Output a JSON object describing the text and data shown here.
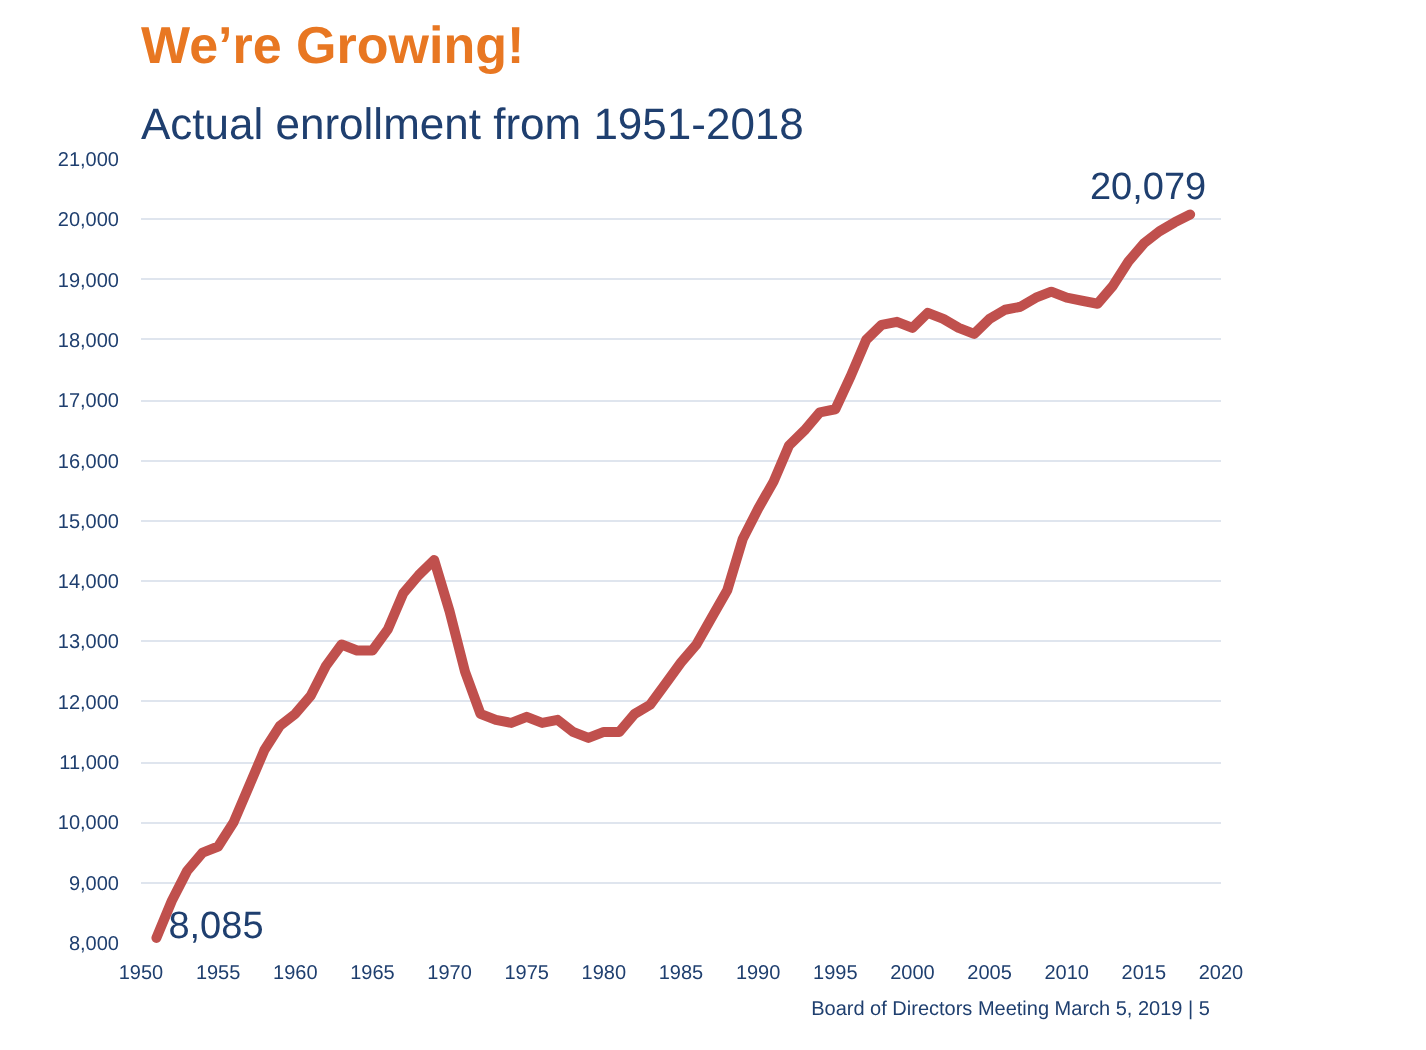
{
  "chart_data": {
    "type": "line",
    "title": "We’re Growing!",
    "subtitle": "Actual enrollment from 1951-2018",
    "x": [
      1951,
      1952,
      1953,
      1954,
      1955,
      1956,
      1957,
      1958,
      1959,
      1960,
      1961,
      1962,
      1963,
      1964,
      1965,
      1966,
      1967,
      1968,
      1969,
      1970,
      1971,
      1972,
      1973,
      1974,
      1975,
      1976,
      1977,
      1978,
      1979,
      1980,
      1981,
      1982,
      1983,
      1984,
      1985,
      1986,
      1987,
      1988,
      1989,
      1990,
      1991,
      1992,
      1993,
      1994,
      1995,
      1996,
      1997,
      1998,
      1999,
      2000,
      2001,
      2002,
      2003,
      2004,
      2005,
      2006,
      2007,
      2008,
      2009,
      2010,
      2011,
      2012,
      2013,
      2014,
      2015,
      2016,
      2017,
      2018
    ],
    "series": [
      {
        "color": "#c0504d",
        "values": [
          8085,
          8700,
          9200,
          9500,
          9600,
          10000,
          10600,
          11200,
          11600,
          11800,
          12100,
          12600,
          12950,
          12850,
          12850,
          13200,
          13800,
          14100,
          14350,
          13500,
          12500,
          11800,
          11700,
          11650,
          11750,
          11650,
          11700,
          11500,
          11400,
          11500,
          11500,
          11800,
          11950,
          12300,
          12650,
          12950,
          13400,
          13850,
          14700,
          15200,
          15650,
          16250,
          16500,
          16800,
          16850,
          17400,
          18000,
          18250,
          18300,
          18200,
          18450,
          18350,
          18200,
          18100,
          18350,
          18500,
          18550,
          18700,
          18800,
          18700,
          18650,
          18600,
          18900,
          19300,
          19600,
          19800,
          19950,
          20079
        ]
      }
    ],
    "annotations": [
      {
        "text": "8,085",
        "x": 1951,
        "y": 8085
      },
      {
        "text": "20,079",
        "x": 2018,
        "y": 20079
      },
      "Board of Directors Meeting March 5, 2019  |  5"
    ],
    "xlim": [
      1950,
      2020
    ],
    "xticks": [
      1950,
      1955,
      1960,
      1965,
      1970,
      1975,
      1980,
      1985,
      1990,
      1995,
      2000,
      2005,
      2010,
      2015,
      2020
    ],
    "ylim": [
      8000,
      21000
    ],
    "yticks": [
      {
        "value": 8000,
        "label": "8,000"
      },
      {
        "value": 9000,
        "label": "9,000"
      },
      {
        "value": 10000,
        "label": "10,000"
      },
      {
        "value": 11000,
        "label": "11,000"
      },
      {
        "value": 12000,
        "label": "12,000"
      },
      {
        "value": 13000,
        "label": "13,000"
      },
      {
        "value": 14000,
        "label": "14,000"
      },
      {
        "value": 15000,
        "label": "15,000"
      },
      {
        "value": 16000,
        "label": "16,000"
      },
      {
        "value": 17000,
        "label": "17,000"
      },
      {
        "value": 18000,
        "label": "18,000"
      },
      {
        "value": 19000,
        "label": "19,000"
      },
      {
        "value": 20000,
        "label": "20,000"
      },
      {
        "value": 21000,
        "label": "21,000"
      }
    ],
    "grid": "y",
    "marker": "none",
    "line_style": "solid"
  }
}
